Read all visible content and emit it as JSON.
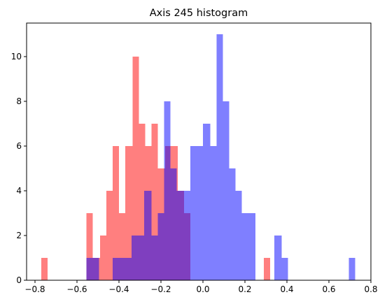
{
  "chart_data": {
    "type": "bar",
    "title": "Axis 245 histogram",
    "xlabel": "",
    "ylabel": "",
    "xlim": [
      -0.84,
      0.8
    ],
    "ylim": [
      0,
      11.5
    ],
    "xticks": [
      -0.8,
      -0.6,
      -0.4,
      -0.2,
      0.0,
      0.2,
      0.4,
      0.6,
      0.8
    ],
    "xtick_labels": [
      "−0.8",
      "−0.6",
      "−0.4",
      "−0.2",
      "0.0",
      "0.2",
      "0.4",
      "0.6",
      "0.8"
    ],
    "yticks": [
      0,
      2,
      4,
      6,
      8,
      10
    ],
    "ytick_labels": [
      "0",
      "2",
      "4",
      "6",
      "8",
      "10"
    ],
    "grid": false,
    "series": [
      {
        "color": "#ff0000",
        "alpha": 0.5,
        "bins": [
          {
            "x0": -0.77,
            "x1": -0.74,
            "value": 1
          },
          {
            "x0": -0.555,
            "x1": -0.525,
            "value": 3
          },
          {
            "x0": -0.525,
            "x1": -0.49,
            "value": 1
          },
          {
            "x0": -0.49,
            "x1": -0.46,
            "value": 2
          },
          {
            "x0": -0.46,
            "x1": -0.43,
            "value": 4
          },
          {
            "x0": -0.43,
            "x1": -0.4,
            "value": 6
          },
          {
            "x0": -0.4,
            "x1": -0.37,
            "value": 3
          },
          {
            "x0": -0.37,
            "x1": -0.335,
            "value": 6
          },
          {
            "x0": -0.335,
            "x1": -0.305,
            "value": 10
          },
          {
            "x0": -0.305,
            "x1": -0.275,
            "value": 7
          },
          {
            "x0": -0.275,
            "x1": -0.245,
            "value": 6
          },
          {
            "x0": -0.245,
            "x1": -0.215,
            "value": 7
          },
          {
            "x0": -0.215,
            "x1": -0.18,
            "value": 5
          },
          {
            "x0": -0.18,
            "x1": -0.15,
            "value": 6
          },
          {
            "x0": -0.15,
            "x1": -0.12,
            "value": 6
          },
          {
            "x0": -0.12,
            "x1": -0.09,
            "value": 4
          },
          {
            "x0": -0.09,
            "x1": -0.06,
            "value": 3
          },
          {
            "x0": 0.29,
            "x1": 0.32,
            "value": 1
          }
        ]
      },
      {
        "color": "#0000ff",
        "alpha": 0.5,
        "bins": [
          {
            "x0": -0.555,
            "x1": -0.525,
            "value": 1
          },
          {
            "x0": -0.525,
            "x1": -0.495,
            "value": 1
          },
          {
            "x0": -0.43,
            "x1": -0.4,
            "value": 1
          },
          {
            "x0": -0.4,
            "x1": -0.37,
            "value": 1
          },
          {
            "x0": -0.37,
            "x1": -0.34,
            "value": 1
          },
          {
            "x0": -0.34,
            "x1": -0.31,
            "value": 2
          },
          {
            "x0": -0.31,
            "x1": -0.28,
            "value": 2
          },
          {
            "x0": -0.28,
            "x1": -0.245,
            "value": 4
          },
          {
            "x0": -0.245,
            "x1": -0.215,
            "value": 2
          },
          {
            "x0": -0.215,
            "x1": -0.185,
            "value": 3
          },
          {
            "x0": -0.185,
            "x1": -0.155,
            "value": 8
          },
          {
            "x0": -0.155,
            "x1": -0.125,
            "value": 5
          },
          {
            "x0": -0.125,
            "x1": -0.09,
            "value": 4
          },
          {
            "x0": -0.09,
            "x1": -0.06,
            "value": 4
          },
          {
            "x0": -0.06,
            "x1": -0.03,
            "value": 6
          },
          {
            "x0": -0.03,
            "x1": 0.0,
            "value": 6
          },
          {
            "x0": 0.0,
            "x1": 0.035,
            "value": 7
          },
          {
            "x0": 0.035,
            "x1": 0.065,
            "value": 6
          },
          {
            "x0": 0.065,
            "x1": 0.095,
            "value": 11
          },
          {
            "x0": 0.095,
            "x1": 0.125,
            "value": 8
          },
          {
            "x0": 0.125,
            "x1": 0.155,
            "value": 5
          },
          {
            "x0": 0.155,
            "x1": 0.185,
            "value": 4
          },
          {
            "x0": 0.185,
            "x1": 0.22,
            "value": 3
          },
          {
            "x0": 0.22,
            "x1": 0.25,
            "value": 3
          },
          {
            "x0": 0.34,
            "x1": 0.375,
            "value": 2
          },
          {
            "x0": 0.375,
            "x1": 0.405,
            "value": 1
          },
          {
            "x0": 0.695,
            "x1": 0.725,
            "value": 1
          }
        ]
      }
    ]
  }
}
